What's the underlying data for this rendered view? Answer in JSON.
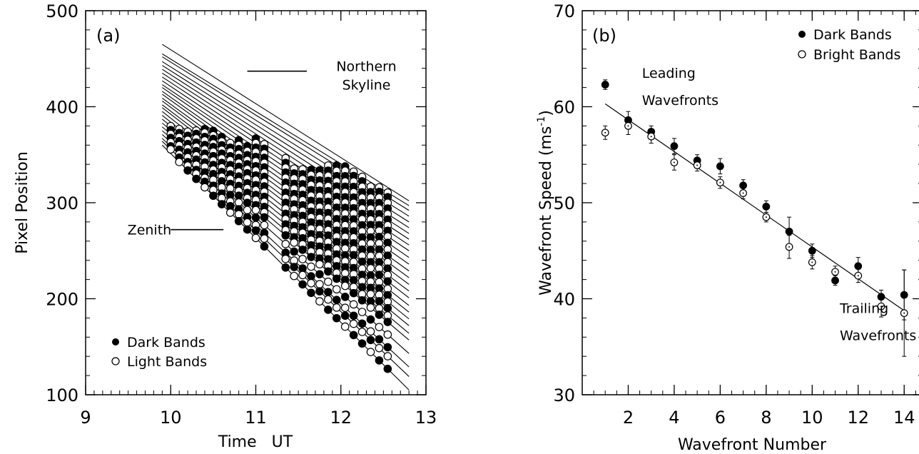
{
  "chart_data": [
    {
      "id": "a",
      "type": "scatter",
      "panel_label": "(a)",
      "xlabel": "Time   UT",
      "ylabel": "Pixel Position",
      "xlim": [
        9,
        13
      ],
      "ylim": [
        100,
        500
      ],
      "xticks": [
        9,
        10,
        11,
        12,
        13
      ],
      "yticks": [
        100,
        200,
        300,
        400,
        500
      ],
      "annotations": [
        {
          "text": "Northern",
          "x": 12.3,
          "y": 437
        },
        {
          "text": "Skyline",
          "x": 12.3,
          "y": 418
        },
        {
          "text": "Zenith",
          "x": 9.75,
          "y": 272
        }
      ],
      "reference_lines": [
        {
          "x": [
            10.9,
            11.6
          ],
          "y": 437
        },
        {
          "x": [
            10.0,
            10.62
          ],
          "y": 272
        }
      ],
      "legend": [
        {
          "label": "Dark Bands",
          "marker": "filled"
        },
        {
          "label": "Light Bands",
          "marker": "open"
        }
      ],
      "fit_lines": {
        "x_start": 9.9,
        "x_end": 12.8,
        "y_start": [
          465,
          455,
          452,
          447,
          443,
          439,
          435,
          431,
          427,
          423,
          420,
          416,
          413,
          409,
          406,
          402,
          399,
          395,
          391,
          387,
          383,
          379,
          375,
          371,
          367,
          364,
          360
        ],
        "y_end": [
          302,
          297,
          292,
          286,
          280,
          274,
          268,
          262,
          256,
          250,
          243,
          236,
          229,
          222,
          215,
          208,
          201,
          193,
          186,
          179,
          172,
          164,
          157,
          143,
          129,
          119,
          105
        ]
      },
      "band_times": [
        10.0,
        10.1,
        10.2,
        10.3,
        10.4,
        10.5,
        10.6,
        10.7,
        10.8,
        10.9,
        11.0,
        11.1,
        11.35,
        11.45,
        11.55,
        11.65,
        11.75,
        11.85,
        11.95,
        12.05,
        12.15,
        12.25,
        12.35,
        12.45,
        12.55
      ],
      "band_top": [
        382,
        378,
        375,
        377,
        377,
        378,
        372,
        365,
        365,
        362,
        368,
        362,
        350,
        340,
        336,
        337,
        334,
        339,
        340,
        340,
        334,
        330,
        320,
        318,
        315
      ],
      "band_bottom": [
        353,
        341,
        332,
        322,
        311,
        301,
        290,
        280,
        269,
        259,
        248,
        238,
        232,
        219,
        208,
        197,
        186,
        175,
        163,
        155,
        146,
        137,
        123,
        124,
        118
      ]
    },
    {
      "id": "b",
      "type": "scatter",
      "panel_label": "(b)",
      "xlabel": "Wavefront Number",
      "ylabel": "Wavefront Speed (ms",
      "ylabel_sup": "-1",
      "ylabel_close": ")",
      "xlim": [
        0,
        14.8
      ],
      "ylim": [
        30,
        70
      ],
      "xticks": [
        2,
        4,
        6,
        8,
        10,
        12,
        14
      ],
      "yticks": [
        30,
        40,
        50,
        60,
        70
      ],
      "annotations": [
        {
          "text": "Leading",
          "x": 2.6,
          "y": 63.0
        },
        {
          "text": "Wavefronts",
          "x": 2.6,
          "y": 60.2
        },
        {
          "text": "Trailing",
          "x": 11.2,
          "y": 38.5
        },
        {
          "text": "Wavefronts",
          "x": 11.2,
          "y": 35.7
        }
      ],
      "legend": [
        {
          "label": "Dark Bands",
          "marker": "filled"
        },
        {
          "label": "Bright Bands",
          "marker": "open"
        }
      ],
      "series": [
        {
          "name": "Dark Bands",
          "marker": "filled",
          "x": [
            1,
            2,
            3,
            4,
            5,
            6,
            7,
            8,
            9,
            10,
            11,
            12,
            13,
            14
          ],
          "y": [
            62.3,
            58.6,
            57.4,
            55.9,
            54.4,
            53.8,
            51.8,
            49.6,
            47.0,
            45.0,
            41.9,
            43.4,
            40.2,
            40.4
          ],
          "err": [
            0.5,
            0.9,
            0.6,
            0.8,
            0.6,
            0.8,
            0.6,
            0.6,
            1.5,
            0.7,
            0.5,
            0.9,
            0.7,
            2.6
          ]
        },
        {
          "name": "Bright Bands",
          "marker": "open",
          "x": [
            1,
            2,
            3,
            4,
            5,
            6,
            7,
            8,
            9,
            10,
            11,
            12,
            13,
            14
          ],
          "y": [
            57.3,
            58.0,
            56.9,
            54.2,
            53.9,
            52.1,
            51.0,
            48.5,
            45.4,
            43.8,
            42.8,
            42.4,
            39.2,
            38.5
          ],
          "err": [
            0.7,
            0.9,
            0.7,
            0.8,
            0.6,
            0.6,
            0.6,
            0.5,
            1.2,
            0.7,
            0.6,
            0.7,
            1.1,
            4.5
          ]
        }
      ],
      "fit_line": {
        "x": [
          1,
          14.1
        ],
        "y": [
          60.3,
          38.6
        ]
      }
    }
  ]
}
